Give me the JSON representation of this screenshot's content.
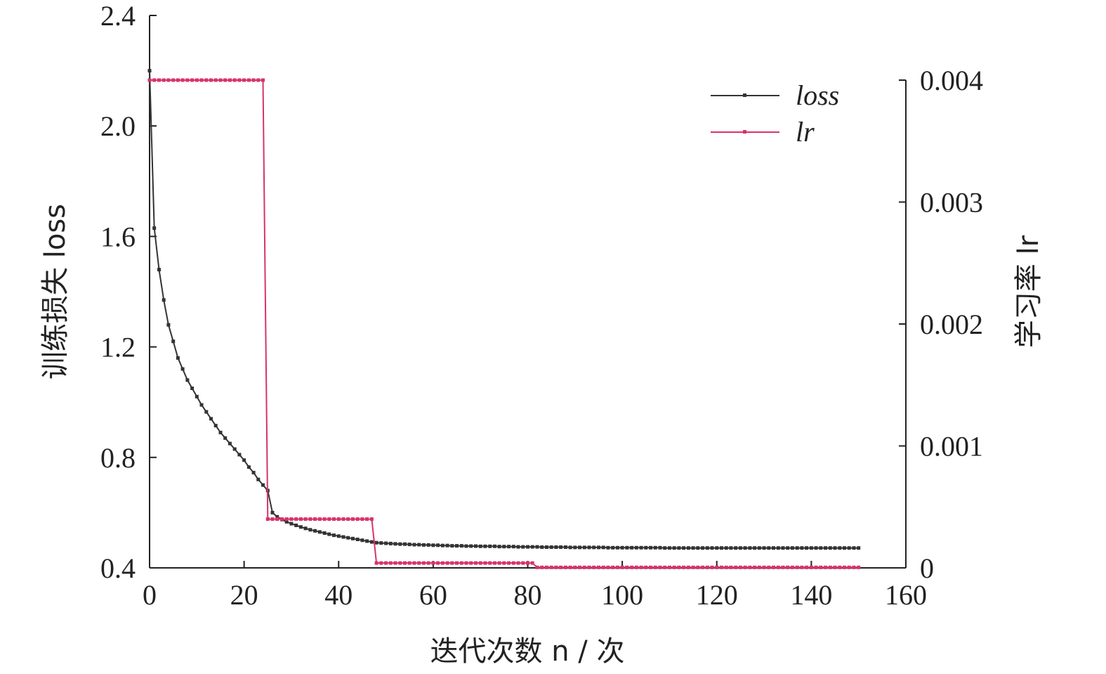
{
  "chart_data": {
    "type": "line",
    "xlabel": "迭代次数 n / 次",
    "ylabel_left": "训练损失 loss",
    "ylabel_right": "学习率 lr",
    "xlim": [
      0,
      160
    ],
    "ylim_left": [
      0.4,
      2.4
    ],
    "ylim_right": [
      0,
      0.004
    ],
    "x_ticks": [
      0,
      20,
      40,
      60,
      80,
      100,
      120,
      140,
      160
    ],
    "y_ticks_left": [
      "0.4",
      "0.8",
      "1.2",
      "1.6",
      "2.0",
      "2.4"
    ],
    "y_ticks_right": [
      "0",
      "0.001",
      "0.002",
      "0.003",
      "0.004"
    ],
    "grid": false,
    "legend_position": "top-right",
    "series": [
      {
        "name": "loss",
        "axis": "left",
        "color": "#333333",
        "x": [
          0,
          1,
          2,
          3,
          4,
          5,
          6,
          7,
          8,
          9,
          10,
          11,
          12,
          13,
          14,
          15,
          16,
          17,
          18,
          19,
          20,
          21,
          22,
          23,
          24,
          25,
          26,
          27,
          28,
          29,
          30,
          31,
          32,
          33,
          34,
          35,
          36,
          37,
          38,
          39,
          40,
          41,
          42,
          43,
          44,
          45,
          46,
          47,
          48,
          49,
          50,
          51,
          52,
          53,
          54,
          55,
          56,
          57,
          58,
          59,
          60,
          61,
          62,
          63,
          64,
          65,
          66,
          67,
          68,
          69,
          70,
          71,
          72,
          73,
          74,
          75,
          76,
          77,
          78,
          79,
          80,
          81,
          82,
          83,
          84,
          85,
          86,
          87,
          88,
          89,
          90,
          91,
          92,
          93,
          94,
          95,
          96,
          97,
          98,
          99,
          100,
          101,
          102,
          103,
          104,
          105,
          106,
          107,
          108,
          109,
          110,
          111,
          112,
          113,
          114,
          115,
          116,
          117,
          118,
          119,
          120,
          121,
          122,
          123,
          124,
          125,
          126,
          127,
          128,
          129,
          130,
          131,
          132,
          133,
          134,
          135,
          136,
          137,
          138,
          139,
          140,
          141,
          142,
          143,
          144,
          145,
          146,
          147,
          148,
          149,
          150
        ],
        "y": [
          2.2,
          1.63,
          1.48,
          1.37,
          1.28,
          1.22,
          1.16,
          1.12,
          1.08,
          1.05,
          1.02,
          0.99,
          0.965,
          0.94,
          0.915,
          0.89,
          0.87,
          0.85,
          0.83,
          0.81,
          0.79,
          0.765,
          0.745,
          0.72,
          0.7,
          0.68,
          0.6,
          0.585,
          0.575,
          0.567,
          0.56,
          0.554,
          0.548,
          0.543,
          0.538,
          0.534,
          0.53,
          0.526,
          0.522,
          0.518,
          0.515,
          0.512,
          0.509,
          0.506,
          0.503,
          0.5,
          0.497,
          0.494,
          0.491,
          0.49,
          0.489,
          0.488,
          0.487,
          0.486,
          0.486,
          0.485,
          0.484,
          0.484,
          0.483,
          0.483,
          0.482,
          0.482,
          0.481,
          0.481,
          0.48,
          0.48,
          0.48,
          0.479,
          0.479,
          0.479,
          0.478,
          0.478,
          0.478,
          0.478,
          0.477,
          0.477,
          0.477,
          0.477,
          0.476,
          0.476,
          0.476,
          0.476,
          0.476,
          0.475,
          0.475,
          0.475,
          0.475,
          0.475,
          0.475,
          0.474,
          0.474,
          0.474,
          0.474,
          0.474,
          0.474,
          0.474,
          0.474,
          0.473,
          0.473,
          0.473,
          0.473,
          0.473,
          0.473,
          0.473,
          0.473,
          0.473,
          0.473,
          0.473,
          0.473,
          0.472,
          0.472,
          0.472,
          0.472,
          0.472,
          0.472,
          0.472,
          0.472,
          0.472,
          0.472,
          0.472,
          0.472,
          0.472,
          0.472,
          0.472,
          0.472,
          0.472,
          0.472,
          0.472,
          0.472,
          0.472,
          0.472,
          0.472,
          0.472,
          0.472,
          0.472,
          0.472,
          0.472,
          0.472,
          0.472,
          0.472,
          0.472,
          0.472,
          0.472,
          0.472,
          0.472,
          0.472,
          0.472,
          0.472,
          0.472,
          0.472,
          0.472
        ]
      },
      {
        "name": "lr",
        "axis": "right",
        "color": "#d6336c",
        "x": [
          0,
          1,
          2,
          3,
          4,
          5,
          6,
          7,
          8,
          9,
          10,
          11,
          12,
          13,
          14,
          15,
          16,
          17,
          18,
          19,
          20,
          21,
          22,
          23,
          24,
          25,
          26,
          27,
          28,
          29,
          30,
          31,
          32,
          33,
          34,
          35,
          36,
          37,
          38,
          39,
          40,
          41,
          42,
          43,
          44,
          45,
          46,
          47,
          48,
          49,
          50,
          51,
          52,
          53,
          54,
          55,
          56,
          57,
          58,
          59,
          60,
          61,
          62,
          63,
          64,
          65,
          66,
          67,
          68,
          69,
          70,
          71,
          72,
          73,
          74,
          75,
          76,
          77,
          78,
          79,
          80,
          81,
          82,
          83,
          84,
          85,
          86,
          87,
          88,
          89,
          90,
          91,
          92,
          93,
          94,
          95,
          96,
          97,
          98,
          99,
          100,
          101,
          102,
          103,
          104,
          105,
          106,
          107,
          108,
          109,
          110,
          111,
          112,
          113,
          114,
          115,
          116,
          117,
          118,
          119,
          120,
          121,
          122,
          123,
          124,
          125,
          126,
          127,
          128,
          129,
          130,
          131,
          132,
          133,
          134,
          135,
          136,
          137,
          138,
          139,
          140,
          141,
          142,
          143,
          144,
          145,
          146,
          147,
          148,
          149,
          150
        ],
        "y": [
          0.004,
          0.004,
          0.004,
          0.004,
          0.004,
          0.004,
          0.004,
          0.004,
          0.004,
          0.004,
          0.004,
          0.004,
          0.004,
          0.004,
          0.004,
          0.004,
          0.004,
          0.004,
          0.004,
          0.004,
          0.004,
          0.004,
          0.004,
          0.004,
          0.004,
          0.0004,
          0.0004,
          0.0004,
          0.0004,
          0.0004,
          0.0004,
          0.0004,
          0.0004,
          0.0004,
          0.0004,
          0.0004,
          0.0004,
          0.0004,
          0.0004,
          0.0004,
          0.0004,
          0.0004,
          0.0004,
          0.0004,
          0.0004,
          0.0004,
          0.0004,
          0.0004,
          4e-05,
          4e-05,
          4e-05,
          4e-05,
          4e-05,
          4e-05,
          4e-05,
          4e-05,
          4e-05,
          4e-05,
          4e-05,
          4e-05,
          4e-05,
          4e-05,
          4e-05,
          4e-05,
          4e-05,
          4e-05,
          4e-05,
          4e-05,
          4e-05,
          4e-05,
          4e-05,
          4e-05,
          4e-05,
          4e-05,
          4e-05,
          4e-05,
          4e-05,
          4e-05,
          4e-05,
          4e-05,
          4e-05,
          4e-05,
          4e-06,
          4e-06,
          4e-06,
          4e-06,
          4e-06,
          4e-06,
          4e-06,
          4e-06,
          4e-06,
          4e-06,
          4e-06,
          4e-06,
          4e-06,
          4e-06,
          4e-06,
          4e-06,
          4e-06,
          4e-06,
          4e-06,
          4e-06,
          4e-06,
          4e-06,
          4e-06,
          4e-06,
          4e-06,
          4e-06,
          4e-06,
          4e-06,
          4e-06,
          4e-06,
          4e-06,
          4e-06,
          4e-06,
          4e-06,
          4e-06,
          4e-06,
          4e-06,
          4e-06,
          4e-06,
          4e-06,
          4e-06,
          4e-06,
          4e-06,
          4e-06,
          4e-06,
          4e-06,
          4e-06,
          4e-06,
          4e-06,
          4e-06,
          4e-06,
          4e-06,
          4e-06,
          4e-06,
          4e-06,
          4e-06,
          4e-06,
          4e-06,
          4e-06,
          4e-06,
          4e-06,
          4e-06,
          4e-06,
          4e-06,
          4e-06,
          4e-06,
          4e-06,
          4e-06,
          4e-06
        ]
      }
    ]
  }
}
